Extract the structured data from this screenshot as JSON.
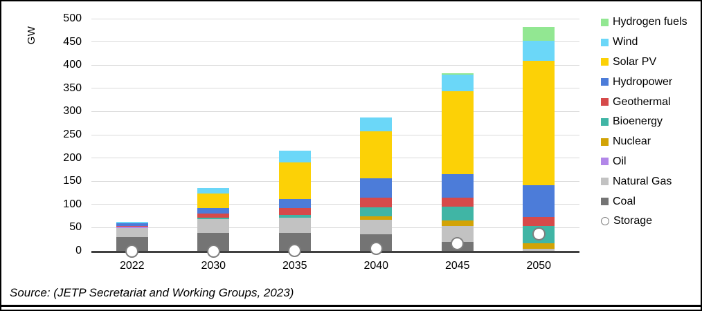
{
  "ylabel": "GW",
  "source_caption": "Source: (JETP Secretariat and Working Groups, 2023)",
  "colors": {
    "hydrogen_fuels": "#92E792",
    "wind": "#6BD7F8",
    "solar_pv": "#FCD106",
    "hydropower": "#4C7CD9",
    "geothermal": "#D64A4A",
    "bioenergy": "#40B5A5",
    "nuclear": "#D2A306",
    "oil": "#B287E8",
    "natural_gas": "#C2C2C2",
    "coal": "#747474",
    "storage_fill": "#FFFFFF",
    "storage_border": "#7F7F7F",
    "axis": "#404040",
    "gridline": "#D9D9D9"
  },
  "chart_data": {
    "type": "bar",
    "stacked": true,
    "title": "",
    "xlabel": "",
    "ylabel": "GW",
    "ylim": [
      0,
      500
    ],
    "y_ticks": [
      0,
      50,
      100,
      150,
      200,
      250,
      300,
      350,
      400,
      450,
      500
    ],
    "grid": true,
    "legend_position": "right",
    "categories": [
      "2022",
      "2030",
      "2035",
      "2040",
      "2045",
      "2050"
    ],
    "series": [
      {
        "name": "Coal",
        "color_key": "coal",
        "values": [
          30,
          39,
          38,
          35,
          20,
          0
        ]
      },
      {
        "name": "Natural Gas",
        "color_key": "natural_gas",
        "values": [
          19,
          29,
          33,
          32,
          33,
          4
        ]
      },
      {
        "name": "Oil",
        "color_key": "oil",
        "values": [
          3,
          0,
          0,
          0,
          0,
          0
        ]
      },
      {
        "name": "Nuclear",
        "color_key": "nuclear",
        "values": [
          0,
          0,
          0,
          7,
          13,
          13
        ]
      },
      {
        "name": "Bioenergy",
        "color_key": "bioenergy",
        "values": [
          0,
          4,
          6,
          20,
          30,
          36
        ]
      },
      {
        "name": "Geothermal",
        "color_key": "geothermal",
        "values": [
          2,
          8,
          15,
          21,
          18,
          20
        ]
      },
      {
        "name": "Hydropower",
        "color_key": "hydropower",
        "values": [
          6,
          12,
          20,
          41,
          51,
          68
        ]
      },
      {
        "name": "Solar PV",
        "color_key": "solar_pv",
        "values": [
          0,
          31,
          79,
          102,
          179,
          268
        ]
      },
      {
        "name": "Wind",
        "color_key": "wind",
        "values": [
          3,
          12,
          25,
          30,
          36,
          43
        ]
      },
      {
        "name": "Hydrogen fuels",
        "color_key": "hydrogen_fuels",
        "values": [
          0,
          0,
          0,
          0,
          2,
          30
        ]
      }
    ],
    "totals": [
      63,
      135,
      216,
      288,
      382,
      482
    ],
    "storage_markers": {
      "name": "Storage",
      "values": [
        0,
        0,
        1,
        5,
        15,
        37
      ]
    },
    "legend": [
      {
        "label": "Hydrogen fuels",
        "color_key": "hydrogen_fuels",
        "shape": "square"
      },
      {
        "label": "Wind",
        "color_key": "wind",
        "shape": "square"
      },
      {
        "label": "Solar PV",
        "color_key": "solar_pv",
        "shape": "square"
      },
      {
        "label": "Hydropower",
        "color_key": "hydropower",
        "shape": "square"
      },
      {
        "label": "Geothermal",
        "color_key": "geothermal",
        "shape": "square"
      },
      {
        "label": "Bioenergy",
        "color_key": "bioenergy",
        "shape": "square"
      },
      {
        "label": "Nuclear",
        "color_key": "nuclear",
        "shape": "square"
      },
      {
        "label": "Oil",
        "color_key": "oil",
        "shape": "square"
      },
      {
        "label": "Natural Gas",
        "color_key": "natural_gas",
        "shape": "square"
      },
      {
        "label": "Coal",
        "color_key": "coal",
        "shape": "square"
      },
      {
        "label": "Storage",
        "color_key": "storage_fill",
        "shape": "circle"
      }
    ]
  }
}
